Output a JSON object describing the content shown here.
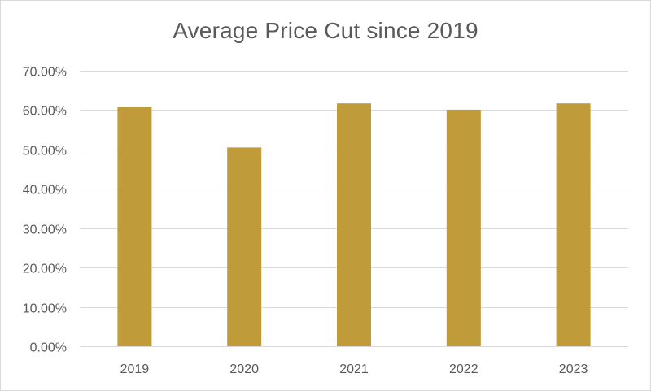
{
  "chart_data": {
    "type": "bar",
    "title": "Average Price Cut since 2019",
    "xlabel": "",
    "ylabel": "",
    "categories": [
      "2019",
      "2020",
      "2021",
      "2022",
      "2023"
    ],
    "values": [
      0.607,
      0.505,
      0.617,
      0.601,
      0.617
    ],
    "ylim": [
      0,
      0.7
    ],
    "y_ticks": [
      0,
      0.1,
      0.2,
      0.3,
      0.4,
      0.5,
      0.6,
      0.7
    ],
    "y_tick_labels": [
      "0.00%",
      "10.00%",
      "20.00%",
      "30.00%",
      "40.00%",
      "50.00%",
      "60.00%",
      "70.00%"
    ],
    "grid": true,
    "legend": "none",
    "colors": {
      "bar": "#bf9b3a",
      "grid": "#d9d9d9",
      "text": "#595959"
    }
  }
}
